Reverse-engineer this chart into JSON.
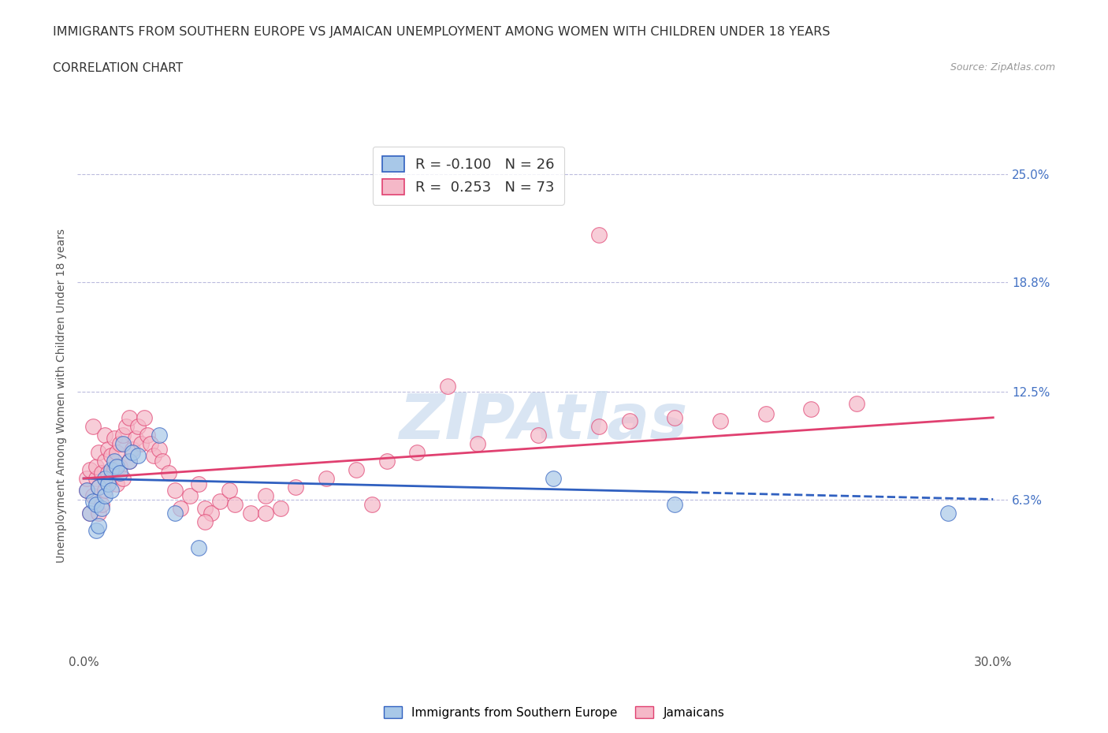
{
  "title": "IMMIGRANTS FROM SOUTHERN EUROPE VS JAMAICAN UNEMPLOYMENT AMONG WOMEN WITH CHILDREN UNDER 18 YEARS",
  "subtitle": "CORRELATION CHART",
  "source": "Source: ZipAtlas.com",
  "ylabel": "Unemployment Among Women with Children Under 18 years",
  "xlim": [
    -0.002,
    0.305
  ],
  "ylim": [
    -0.025,
    0.27
  ],
  "yticks": [
    0.063,
    0.125,
    0.188,
    0.25
  ],
  "ytick_labels": [
    "6.3%",
    "12.5%",
    "18.8%",
    "25.0%"
  ],
  "blue_R": -0.1,
  "blue_N": 26,
  "pink_R": 0.253,
  "pink_N": 73,
  "blue_color": "#a8c8e8",
  "pink_color": "#f5b8c8",
  "blue_line_color": "#3060c0",
  "pink_line_color": "#e04070",
  "watermark_color": "#d0dff0",
  "watermark": "ZIPAtlas",
  "blue_scatter_x": [
    0.001,
    0.002,
    0.003,
    0.004,
    0.004,
    0.005,
    0.005,
    0.006,
    0.007,
    0.007,
    0.008,
    0.009,
    0.009,
    0.01,
    0.011,
    0.012,
    0.013,
    0.015,
    0.016,
    0.018,
    0.025,
    0.03,
    0.038,
    0.155,
    0.195,
    0.285
  ],
  "blue_scatter_y": [
    0.068,
    0.055,
    0.062,
    0.06,
    0.045,
    0.07,
    0.048,
    0.058,
    0.075,
    0.065,
    0.072,
    0.08,
    0.068,
    0.085,
    0.082,
    0.078,
    0.095,
    0.085,
    0.09,
    0.088,
    0.1,
    0.055,
    0.035,
    0.075,
    0.06,
    0.055
  ],
  "pink_scatter_x": [
    0.001,
    0.001,
    0.002,
    0.002,
    0.003,
    0.003,
    0.004,
    0.004,
    0.005,
    0.005,
    0.005,
    0.006,
    0.006,
    0.007,
    0.007,
    0.007,
    0.008,
    0.008,
    0.009,
    0.009,
    0.01,
    0.01,
    0.011,
    0.011,
    0.012,
    0.012,
    0.013,
    0.013,
    0.014,
    0.015,
    0.015,
    0.016,
    0.017,
    0.018,
    0.019,
    0.02,
    0.021,
    0.022,
    0.023,
    0.025,
    0.026,
    0.028,
    0.03,
    0.032,
    0.035,
    0.038,
    0.04,
    0.042,
    0.045,
    0.048,
    0.05,
    0.055,
    0.06,
    0.065,
    0.07,
    0.08,
    0.09,
    0.1,
    0.11,
    0.13,
    0.15,
    0.17,
    0.18,
    0.195,
    0.21,
    0.225,
    0.24,
    0.255,
    0.17,
    0.12,
    0.095,
    0.06,
    0.04
  ],
  "pink_scatter_y": [
    0.068,
    0.075,
    0.08,
    0.055,
    0.065,
    0.105,
    0.075,
    0.082,
    0.07,
    0.055,
    0.09,
    0.06,
    0.078,
    0.068,
    0.085,
    0.1,
    0.078,
    0.092,
    0.075,
    0.088,
    0.08,
    0.098,
    0.072,
    0.09,
    0.082,
    0.095,
    0.1,
    0.075,
    0.105,
    0.085,
    0.11,
    0.092,
    0.098,
    0.105,
    0.095,
    0.11,
    0.1,
    0.095,
    0.088,
    0.092,
    0.085,
    0.078,
    0.068,
    0.058,
    0.065,
    0.072,
    0.058,
    0.055,
    0.062,
    0.068,
    0.06,
    0.055,
    0.065,
    0.058,
    0.07,
    0.075,
    0.08,
    0.085,
    0.09,
    0.095,
    0.1,
    0.105,
    0.108,
    0.11,
    0.108,
    0.112,
    0.115,
    0.118,
    0.215,
    0.128,
    0.06,
    0.055,
    0.05
  ]
}
